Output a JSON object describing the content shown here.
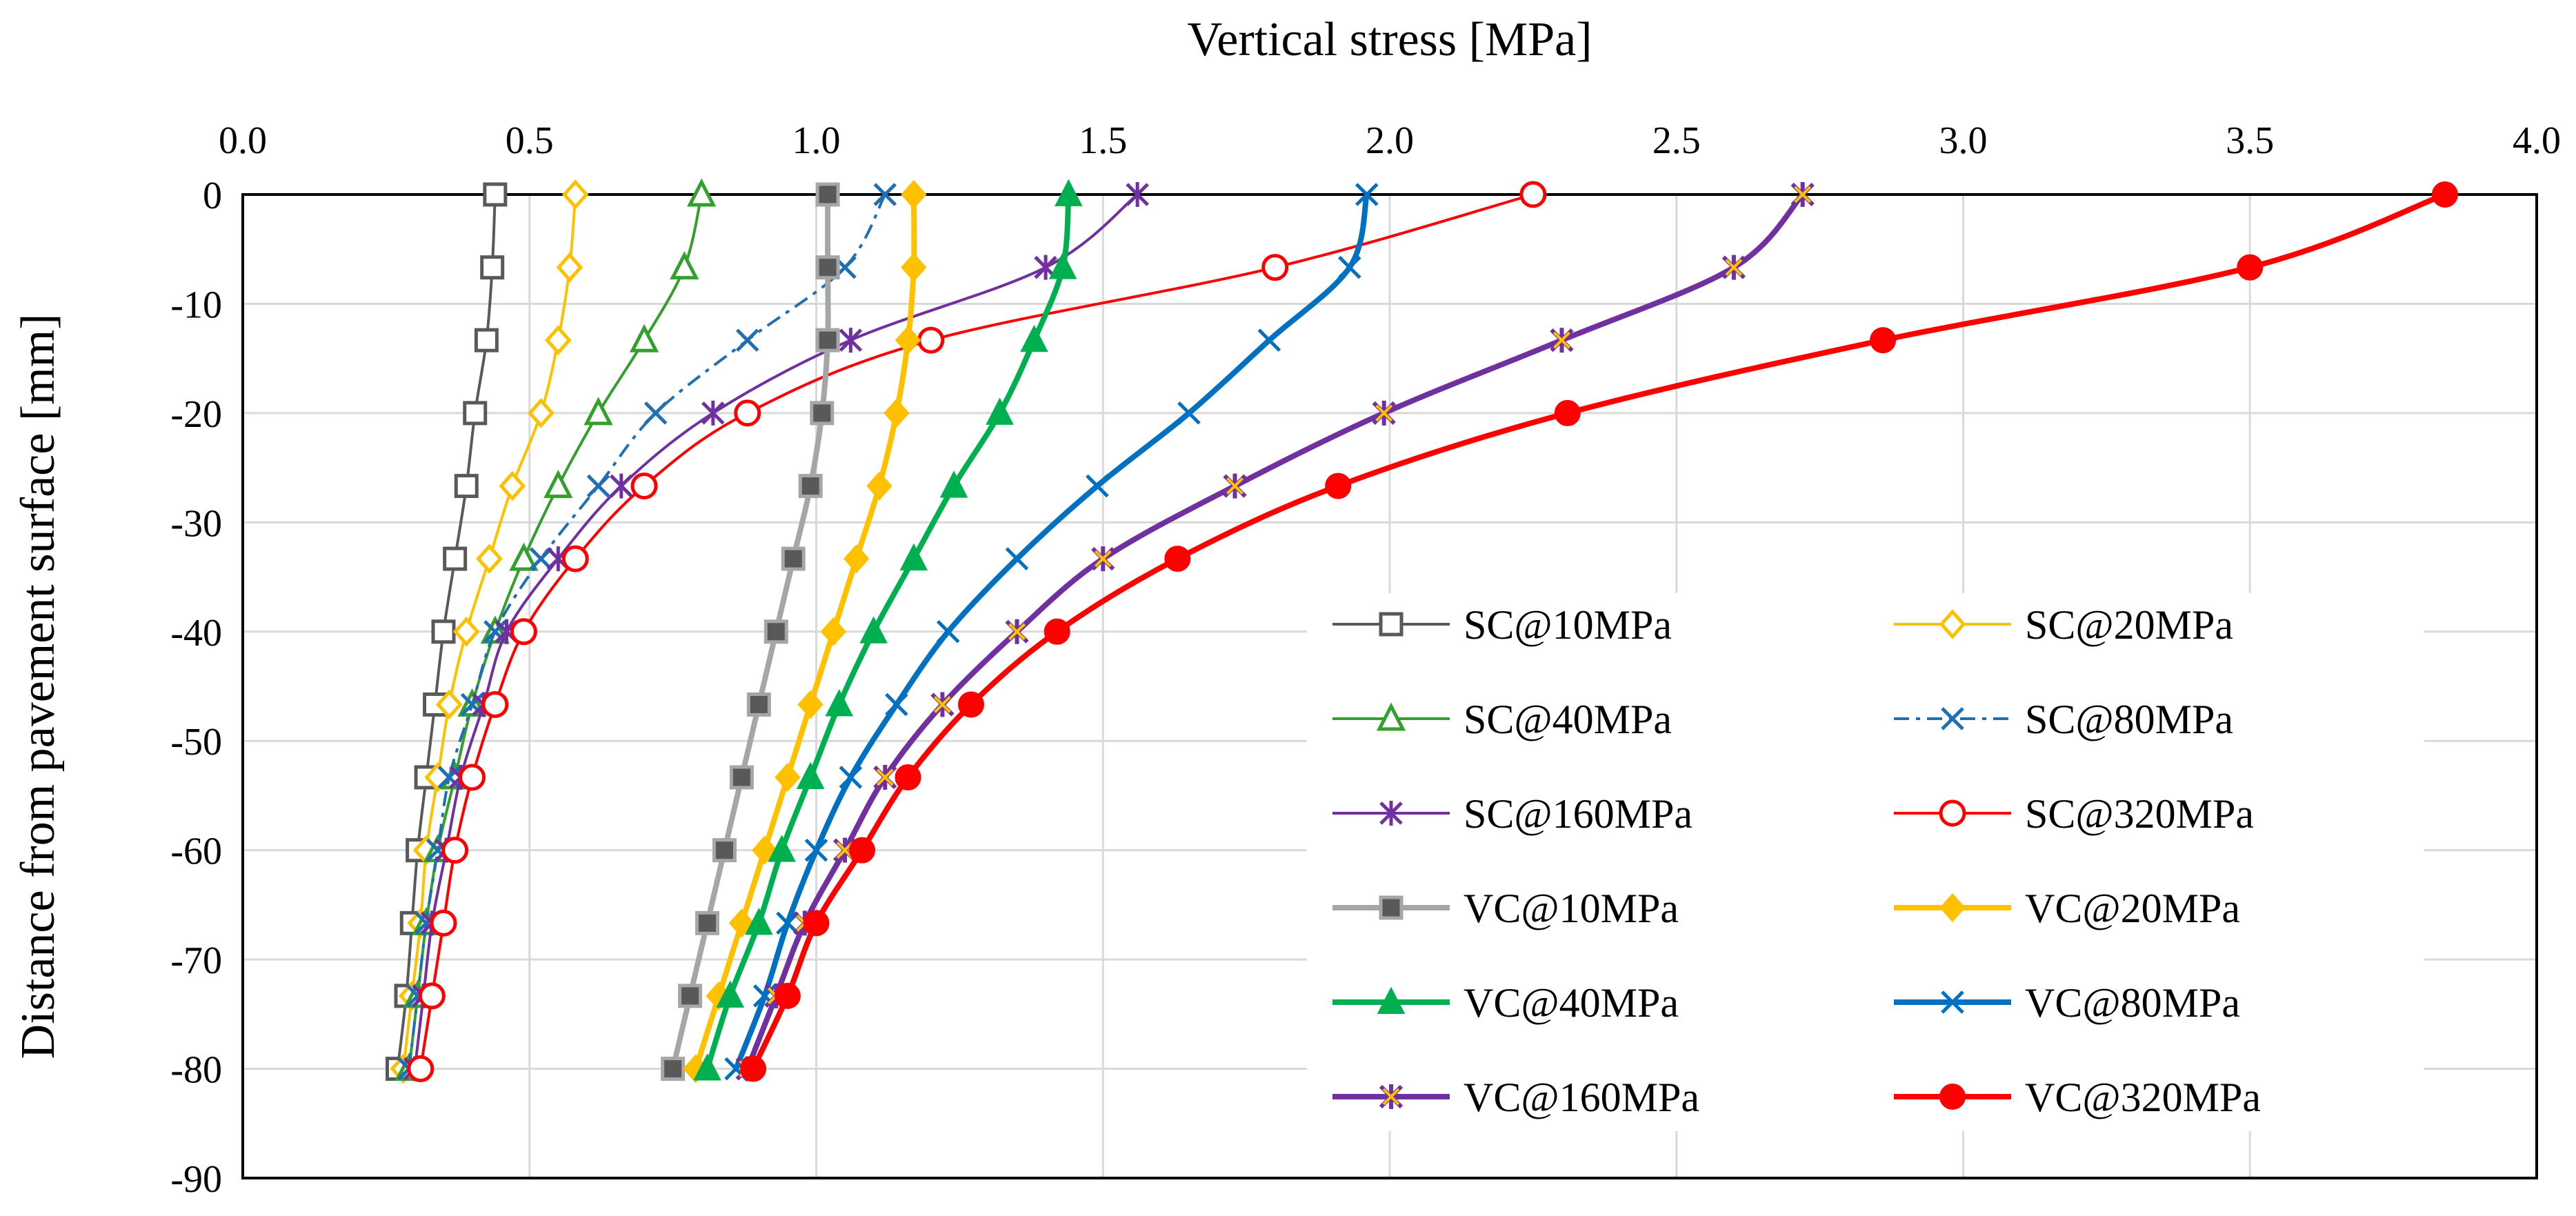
{
  "chart_data": {
    "type": "line",
    "title": "",
    "xlabel": "Vertical stress [MPa]",
    "ylabel": "Distance from pavement surface [mm]",
    "xlim": [
      0.0,
      4.0
    ],
    "ylim": [
      -90,
      0
    ],
    "xticks": [
      "0.0",
      "0.5",
      "1.0",
      "1.5",
      "2.0",
      "2.5",
      "3.0",
      "3.5",
      "4.0"
    ],
    "yticks": [
      "0",
      "-10",
      "-20",
      "-30",
      "-40",
      "-50",
      "-60",
      "-70",
      "-80",
      "-90"
    ],
    "x_axis_position": "top",
    "grid": true,
    "legend_position": "bottom-right",
    "depths": [
      0,
      -6.67,
      -13.33,
      -20,
      -26.67,
      -33.33,
      -40,
      -46.67,
      -53.33,
      -60,
      -66.67,
      -73.33,
      -80
    ],
    "series": [
      {
        "name": "SC@10MPa",
        "color": "#595959",
        "marker": "square-open",
        "dash": false,
        "values": [
          0.44,
          0.435,
          0.425,
          0.405,
          0.39,
          0.37,
          0.35,
          0.335,
          0.32,
          0.305,
          0.295,
          0.285,
          0.27
        ]
      },
      {
        "name": "SC@20MPa",
        "color": "#FFC000",
        "marker": "diamond-open",
        "dash": false,
        "values": [
          0.58,
          0.57,
          0.55,
          0.52,
          0.47,
          0.43,
          0.39,
          0.36,
          0.34,
          0.32,
          0.31,
          0.295,
          0.28
        ]
      },
      {
        "name": "SC@40MPa",
        "color": "#33A02C",
        "marker": "triangle-open",
        "dash": false,
        "values": [
          0.8,
          0.77,
          0.7,
          0.62,
          0.55,
          0.49,
          0.44,
          0.4,
          0.37,
          0.34,
          0.32,
          0.305,
          0.29
        ]
      },
      {
        "name": "SC@80MPa",
        "color": "#1F6FB5",
        "marker": "x",
        "dash": true,
        "values": [
          1.12,
          1.05,
          0.88,
          0.72,
          0.62,
          0.52,
          0.44,
          0.4,
          0.36,
          0.34,
          0.32,
          0.305,
          0.29
        ]
      },
      {
        "name": "SC@160MPa",
        "color": "#7030A0",
        "marker": "star",
        "dash": false,
        "values": [
          1.56,
          1.4,
          1.06,
          0.82,
          0.66,
          0.55,
          0.46,
          0.42,
          0.38,
          0.355,
          0.33,
          0.315,
          0.3
        ]
      },
      {
        "name": "SC@320MPa",
        "color": "#FF0000",
        "marker": "circle-open",
        "dash": false,
        "values": [
          2.25,
          1.8,
          1.2,
          0.88,
          0.7,
          0.58,
          0.49,
          0.44,
          0.4,
          0.37,
          0.35,
          0.33,
          0.31
        ]
      },
      {
        "name": "VC@10MPa",
        "color": "#A6A6A6",
        "marker": "square-filled",
        "dash": false,
        "values": [
          1.02,
          1.02,
          1.02,
          1.01,
          0.99,
          0.96,
          0.93,
          0.9,
          0.87,
          0.84,
          0.81,
          0.78,
          0.75
        ]
      },
      {
        "name": "VC@20MPa",
        "color": "#FFC000",
        "marker": "diamond-filled",
        "dash": false,
        "values": [
          1.17,
          1.17,
          1.16,
          1.14,
          1.11,
          1.07,
          1.03,
          0.99,
          0.95,
          0.91,
          0.87,
          0.83,
          0.79
        ]
      },
      {
        "name": "VC@40MPa",
        "color": "#00B050",
        "marker": "triangle-filled",
        "dash": false,
        "values": [
          1.44,
          1.43,
          1.38,
          1.32,
          1.24,
          1.17,
          1.1,
          1.04,
          0.99,
          0.94,
          0.9,
          0.85,
          0.81
        ]
      },
      {
        "name": "VC@80MPa",
        "color": "#0070C0",
        "marker": "x",
        "dash": false,
        "values": [
          1.96,
          1.93,
          1.79,
          1.65,
          1.49,
          1.35,
          1.23,
          1.14,
          1.06,
          1.0,
          0.95,
          0.91,
          0.86
        ]
      },
      {
        "name": "VC@160MPa",
        "color": "#7030A0",
        "marker": "star-filled",
        "dash": false,
        "values": [
          2.72,
          2.6,
          2.3,
          1.99,
          1.73,
          1.5,
          1.35,
          1.22,
          1.12,
          1.05,
          0.98,
          0.93,
          0.88
        ]
      },
      {
        "name": "VC@320MPa",
        "color": "#FF0000",
        "marker": "circle-filled",
        "dash": false,
        "values": [
          3.84,
          3.5,
          2.86,
          2.31,
          1.91,
          1.63,
          1.42,
          1.27,
          1.16,
          1.08,
          1.0,
          0.95,
          0.89
        ]
      }
    ]
  }
}
